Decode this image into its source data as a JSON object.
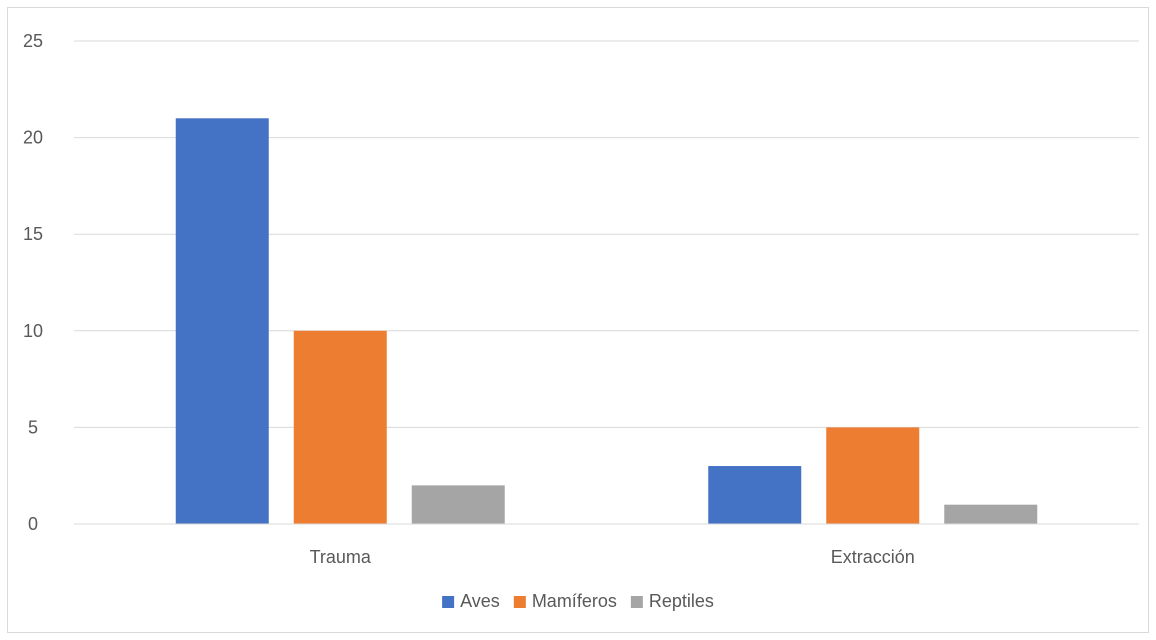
{
  "chart_data": {
    "type": "bar",
    "title": "",
    "xlabel": "",
    "ylabel": "",
    "categories": [
      "Trauma",
      "Extracción"
    ],
    "series": [
      {
        "name": "Aves",
        "values": [
          21,
          3
        ],
        "color": "#4472c4"
      },
      {
        "name": "Mamíferos",
        "values": [
          10,
          5
        ],
        "color": "#ed7d31"
      },
      {
        "name": "Reptiles",
        "values": [
          2,
          1
        ],
        "color": "#a5a5a5"
      }
    ],
    "ylim": [
      0,
      25
    ],
    "yticks": [
      0,
      5,
      10,
      15,
      20,
      25
    ],
    "grid": true,
    "gridline_color": "#d9d9d9",
    "legend_position": "bottom"
  }
}
